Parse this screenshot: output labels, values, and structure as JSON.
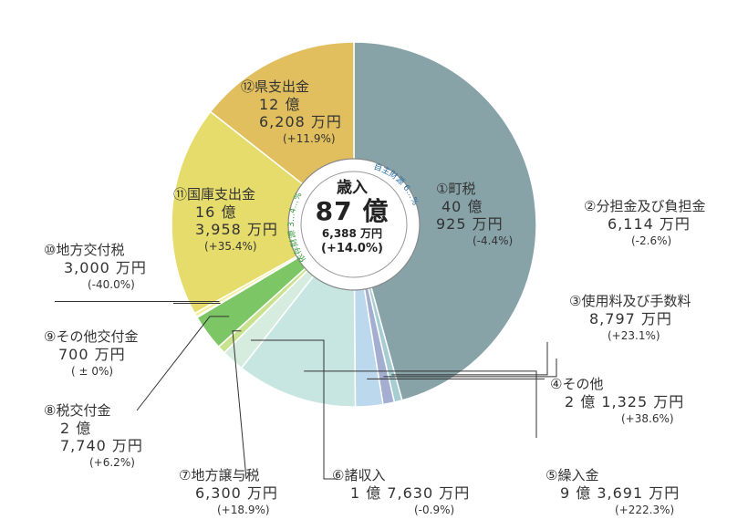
{
  "chart_data": {
    "type": "pie",
    "center": {
      "title": "歳入",
      "total": "87 億",
      "sub": "6,388 万円",
      "change": "(+14.0%)"
    },
    "ring_labels": {
      "own": "自主財源 6…%",
      "dependent": "依存財源 3…4…%"
    },
    "slices": [
      {
        "name": "①町税",
        "value": 40.0925,
        "amount_line1": "40 億",
        "amount_line2": "925 万円",
        "change": "(-4.4%)",
        "color": "#87a3a8"
      },
      {
        "name": "②分担金及び負担金",
        "value": 0.6114,
        "amount_line1": "",
        "amount_line2": "6,114 万円",
        "change": "(-2.6%)",
        "color": "#a6cdd2"
      },
      {
        "name": "③使用料及び手数料",
        "value": 0.8797,
        "amount_line1": "",
        "amount_line2": "8,797 万円",
        "change": "(+23.1%)",
        "color": "#a3aed0"
      },
      {
        "name": "④その他",
        "value": 2.1325,
        "amount_line1": "",
        "amount_line2": "2 億 1,325 万円",
        "change": "(+38.6%)",
        "color": "#bcd8ec"
      },
      {
        "name": "⑤繰入金",
        "value": 9.3691,
        "amount_line1": "",
        "amount_line2": "9 億 3,691 万円",
        "change": "(+222.3%)",
        "color": "#c7e6e1"
      },
      {
        "name": "⑥諸収入",
        "value": 1.763,
        "amount_line1": "",
        "amount_line2": "1 億 7,630 万円",
        "change": "(-0.9%)",
        "color": "#d5ecdf"
      },
      {
        "name": "⑦地方譲与税",
        "value": 0.63,
        "amount_line1": "",
        "amount_line2": "6,300 万円",
        "change": "(+18.9%)",
        "color": "#c9e28f"
      },
      {
        "name": "⑧税交付金",
        "value": 2.774,
        "amount_line1": "2 億",
        "amount_line2": "7,740 万円",
        "change": "(+6.2%)",
        "color": "#7cc666"
      },
      {
        "name": "⑨その他交付金",
        "value": 0.07,
        "amount_line1": "",
        "amount_line2": "700 万円",
        "change": "( ± 0%)",
        "color": "#b9df9c"
      },
      {
        "name": "⑩地方交付税",
        "value": 0.3,
        "amount_line1": "",
        "amount_line2": "3,000 万円",
        "change": "(-40.0%)",
        "color": "#f3ef9e"
      },
      {
        "name": "⑪国庫支出金",
        "value": 16.3958,
        "amount_line1": "16 億",
        "amount_line2": "3,958 万円",
        "change": "(+35.4%)",
        "color": "#e5dc6c"
      },
      {
        "name": "⑫県支出金",
        "value": 12.6208,
        "amount_line1": "12 億",
        "amount_line2": "6,208 万円",
        "change": "(+11.9%)",
        "color": "#e2bf5e"
      }
    ]
  }
}
